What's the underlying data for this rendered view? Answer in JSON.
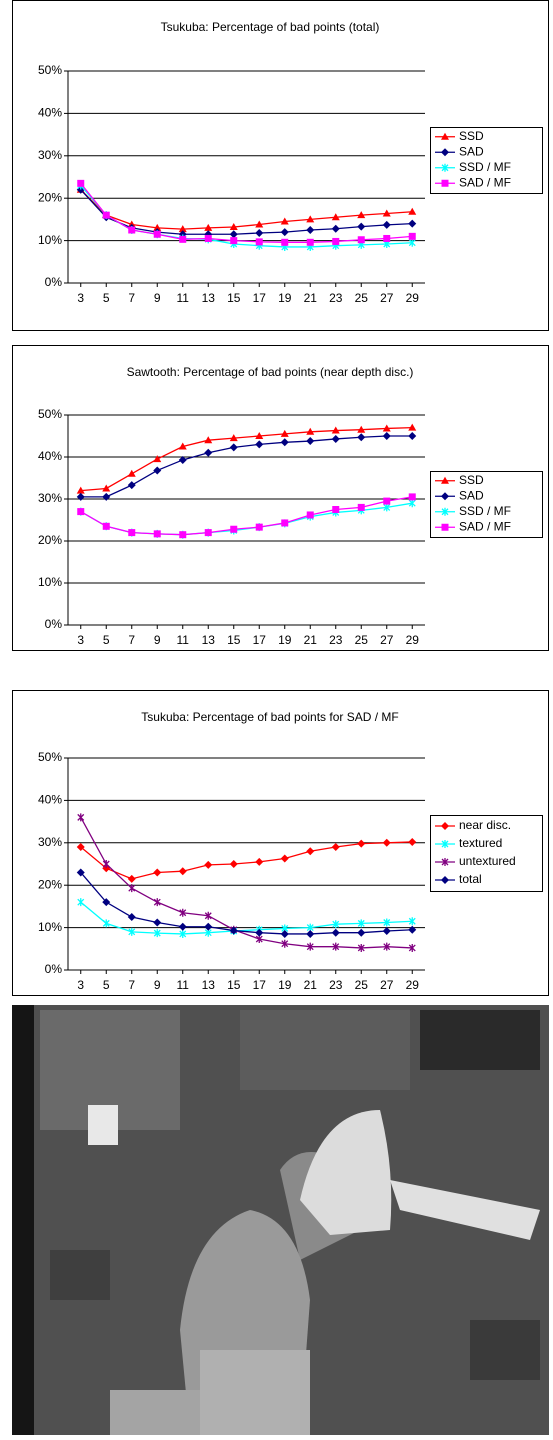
{
  "chart_data": [
    {
      "type": "line",
      "title": "Tsukuba: Percentage of bad points (total)",
      "x": [
        3,
        5,
        7,
        9,
        11,
        13,
        15,
        17,
        19,
        21,
        23,
        25,
        27,
        29
      ],
      "xlim": [
        2,
        30
      ],
      "ylim": [
        0,
        50
      ],
      "yticks": [
        {
          "value": 0,
          "label": "0%"
        },
        {
          "value": 10,
          "label": "10%"
        },
        {
          "value": 20,
          "label": "20%"
        },
        {
          "value": 30,
          "label": "30%"
        },
        {
          "value": 40,
          "label": "40%"
        },
        {
          "value": 50,
          "label": "50%"
        }
      ],
      "grid": true,
      "legend": "right",
      "series": [
        {
          "name": "SSD",
          "color": "#ff0000",
          "marker": "triangle",
          "values": [
            22,
            16,
            13.8,
            13,
            12.7,
            13,
            13.2,
            13.8,
            14.5,
            15,
            15.5,
            16,
            16.4,
            16.8
          ]
        },
        {
          "name": "SAD",
          "color": "#000080",
          "marker": "diamond",
          "values": [
            22,
            15.5,
            13,
            12,
            11.5,
            11.5,
            11.5,
            11.8,
            12,
            12.5,
            12.8,
            13.3,
            13.7,
            14
          ]
        },
        {
          "name": "SSD / MF",
          "color": "#00ffff",
          "marker": "star",
          "values": [
            23,
            16,
            12.5,
            11.5,
            10.5,
            10.3,
            9.2,
            8.8,
            8.5,
            8.5,
            8.8,
            9,
            9.2,
            9.5
          ]
        },
        {
          "name": "SAD / MF",
          "color": "#ff00ff",
          "marker": "square",
          "values": [
            23.5,
            16,
            12.5,
            11.5,
            10.3,
            10.5,
            10,
            9.7,
            9.6,
            9.6,
            9.8,
            10.2,
            10.5,
            11
          ]
        }
      ]
    },
    {
      "type": "line",
      "title": "Sawtooth: Percentage of bad points (near depth disc.)",
      "x": [
        3,
        5,
        7,
        9,
        11,
        13,
        15,
        17,
        19,
        21,
        23,
        25,
        27,
        29
      ],
      "xlim": [
        2,
        30
      ],
      "ylim": [
        0,
        50
      ],
      "yticks": [
        {
          "value": 0,
          "label": "0%"
        },
        {
          "value": 10,
          "label": "10%"
        },
        {
          "value": 20,
          "label": "20%"
        },
        {
          "value": 30,
          "label": "30%"
        },
        {
          "value": 40,
          "label": "40%"
        },
        {
          "value": 50,
          "label": "50%"
        }
      ],
      "grid": true,
      "legend": "right",
      "series": [
        {
          "name": "SSD",
          "color": "#ff0000",
          "marker": "triangle",
          "values": [
            32,
            32.5,
            36,
            39.5,
            42.5,
            44,
            44.5,
            45,
            45.5,
            46,
            46.3,
            46.5,
            46.8,
            47
          ]
        },
        {
          "name": "SAD",
          "color": "#000080",
          "marker": "diamond",
          "values": [
            30.5,
            30.5,
            33.3,
            36.8,
            39.3,
            41,
            42.3,
            43,
            43.5,
            43.8,
            44.3,
            44.7,
            45,
            45
          ]
        },
        {
          "name": "SSD / MF",
          "color": "#00ffff",
          "marker": "star",
          "values": [
            27,
            23.5,
            22,
            21.7,
            21.5,
            22,
            22.5,
            23.3,
            24.2,
            25.8,
            26.8,
            27.3,
            28,
            29
          ]
        },
        {
          "name": "SAD / MF",
          "color": "#ff00ff",
          "marker": "square",
          "values": [
            27,
            23.5,
            22,
            21.7,
            21.5,
            22,
            22.8,
            23.3,
            24.3,
            26.2,
            27.5,
            28,
            29.5,
            30.5
          ]
        }
      ]
    },
    {
      "type": "line",
      "title": "Tsukuba: Percentage of bad points for SAD / MF",
      "x": [
        3,
        5,
        7,
        9,
        11,
        13,
        15,
        17,
        19,
        21,
        23,
        25,
        27,
        29
      ],
      "xlim": [
        2,
        30
      ],
      "ylim": [
        0,
        50
      ],
      "yticks": [
        {
          "value": 0,
          "label": "0%"
        },
        {
          "value": 10,
          "label": "10%"
        },
        {
          "value": 20,
          "label": "20%"
        },
        {
          "value": 30,
          "label": "30%"
        },
        {
          "value": 40,
          "label": "40%"
        },
        {
          "value": 50,
          "label": "50%"
        }
      ],
      "grid": true,
      "legend": "right",
      "series": [
        {
          "name": "near disc.",
          "color": "#ff0000",
          "marker": "diamond",
          "values": [
            29,
            24,
            21.5,
            23,
            23.3,
            24.8,
            25,
            25.5,
            26.3,
            28,
            29,
            29.8,
            30,
            30.2
          ]
        },
        {
          "name": "textured",
          "color": "#00ffff",
          "marker": "star",
          "values": [
            16,
            11,
            9,
            8.7,
            8.5,
            8.8,
            9.2,
            9.5,
            9.8,
            10,
            10.8,
            11,
            11.2,
            11.5
          ]
        },
        {
          "name": "untextured",
          "color": "#800080",
          "marker": "star",
          "values": [
            36,
            25,
            19.3,
            16,
            13.5,
            12.8,
            9.5,
            7.3,
            6.2,
            5.5,
            5.5,
            5.2,
            5.5,
            5.2
          ]
        },
        {
          "name": "total",
          "color": "#000080",
          "marker": "diamond",
          "values": [
            23,
            16,
            12.5,
            11.2,
            10.2,
            10.2,
            9.3,
            8.8,
            8.5,
            8.5,
            8.8,
            8.8,
            9.2,
            9.5
          ]
        }
      ]
    }
  ]
}
